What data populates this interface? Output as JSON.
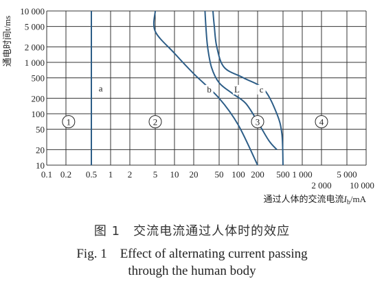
{
  "chart_data": {
    "type": "line",
    "title": "",
    "xlabel": "通过人体的交流电流I_b/mA",
    "xlabel_parts": {
      "main": "通过人体的交流电流",
      "var": "I",
      "sub": "b",
      "unit": "/mA"
    },
    "ylabel": "通电时间t/ms",
    "x_scale": "log",
    "y_scale": "log",
    "xlim": [
      0.1,
      10000
    ],
    "ylim": [
      10,
      10000
    ],
    "grid": true,
    "x_ticks": [
      0.1,
      0.2,
      0.5,
      1,
      2,
      5,
      10,
      20,
      50,
      100,
      200,
      500,
      1000,
      2000,
      5000,
      10000
    ],
    "x_tick_labels": [
      "0.1",
      "0.2",
      "0.5",
      "1",
      "2",
      "5",
      "10",
      "20",
      "50",
      "100",
      "200",
      "500",
      "1 000",
      "2 000",
      "5 000",
      "10 000"
    ],
    "y_ticks": [
      10,
      20,
      50,
      100,
      200,
      500,
      1000,
      2000,
      5000,
      10000
    ],
    "y_tick_labels": [
      "10",
      "20",
      "50",
      "100",
      "200",
      "500",
      "1 000",
      "2 000",
      "5 000",
      "10 000"
    ],
    "series": [
      {
        "name": "a",
        "points": [
          [
            0.5,
            10
          ],
          [
            0.5,
            10000
          ]
        ]
      },
      {
        "name": "b",
        "points": [
          [
            5,
            10000
          ],
          [
            5,
            4000
          ],
          [
            10,
            1500
          ],
          [
            20,
            600
          ],
          [
            50,
            200
          ],
          [
            100,
            60
          ],
          [
            200,
            10
          ]
        ]
      },
      {
        "name": "L",
        "points": [
          [
            30,
            10000
          ],
          [
            31,
            5000
          ],
          [
            33,
            2000
          ],
          [
            38,
            800
          ],
          [
            50,
            400
          ],
          [
            80,
            250
          ],
          [
            130,
            160
          ],
          [
            200,
            70
          ],
          [
            300,
            30
          ],
          [
            400,
            20
          ]
        ]
      },
      {
        "name": "c",
        "points": [
          [
            40,
            10000
          ],
          [
            42,
            5000
          ],
          [
            46,
            2000
          ],
          [
            60,
            800
          ],
          [
            120,
            500
          ],
          [
            250,
            300
          ],
          [
            400,
            100
          ],
          [
            480,
            40
          ],
          [
            500,
            10
          ]
        ]
      }
    ],
    "zones": [
      {
        "label": "1",
        "x": 0.22,
        "y": 70
      },
      {
        "label": "2",
        "x": 5,
        "y": 70
      },
      {
        "label": "3",
        "x": 200,
        "y": 70
      },
      {
        "label": "4",
        "x": 2000,
        "y": 70
      }
    ],
    "curve_labels": [
      {
        "text": "a",
        "x": 0.7,
        "y": 270
      },
      {
        "text": "b",
        "x": 35,
        "y": 260
      },
      {
        "text": "L",
        "x": 95,
        "y": 260
      },
      {
        "text": "c",
        "x": 230,
        "y": 260
      }
    ],
    "colors": {
      "curve": "#2c5d87",
      "grid": "#333333",
      "axis": "#222222"
    }
  },
  "caption": {
    "cn": "图 1　交流电流通过人体时的效应",
    "en_line1": "Fig. 1　Effect of alternating current passing",
    "en_line2": "through the human body"
  }
}
